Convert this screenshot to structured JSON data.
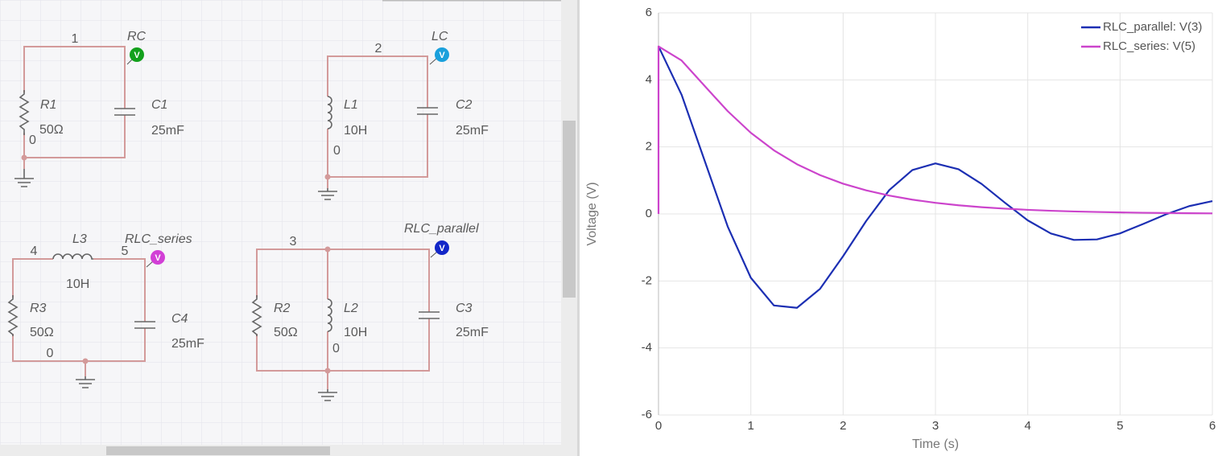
{
  "schematic": {
    "circuits": [
      {
        "probe": "RC",
        "probe_label": "V",
        "nodes": [
          "1",
          "0"
        ],
        "components": [
          {
            "ref": "R1",
            "value": "50Ω"
          },
          {
            "ref": "C1",
            "value": "25mF"
          }
        ]
      },
      {
        "probe": "LC",
        "probe_label": "V",
        "nodes": [
          "2",
          "0"
        ],
        "components": [
          {
            "ref": "L1",
            "value": "10H"
          },
          {
            "ref": "C2",
            "value": "25mF"
          }
        ]
      },
      {
        "probe": "RLC_series",
        "probe_label": "V",
        "nodes": [
          "4",
          "5",
          "0"
        ],
        "components": [
          {
            "ref": "L3",
            "value": "10H"
          },
          {
            "ref": "R3",
            "value": "50Ω"
          },
          {
            "ref": "C4",
            "value": "25mF"
          }
        ]
      },
      {
        "probe": "RLC_parallel",
        "probe_label": "V",
        "nodes": [
          "3",
          "0"
        ],
        "components": [
          {
            "ref": "R2",
            "value": "50Ω"
          },
          {
            "ref": "L2",
            "value": "10H"
          },
          {
            "ref": "C3",
            "value": "25mF"
          }
        ]
      }
    ]
  },
  "chart_data": {
    "type": "line",
    "xlabel": "Time (s)",
    "ylabel": "Voltage (V)",
    "xlim": [
      0,
      6
    ],
    "ylim": [
      -6,
      6
    ],
    "xticks": [
      0,
      1,
      2,
      3,
      4,
      5,
      6
    ],
    "yticks": [
      -6,
      -4,
      -2,
      0,
      2,
      4,
      6
    ],
    "grid": true,
    "legend": "upper right",
    "series": [
      {
        "name": "RLC_parallel: V(3)",
        "color": "#1c2fb3",
        "x": [
          0,
          0.25,
          0.5,
          0.75,
          1,
          1.25,
          1.5,
          1.75,
          2,
          2.25,
          2.5,
          2.75,
          3,
          3.25,
          3.5,
          3.75,
          4,
          4.25,
          4.5,
          4.75,
          5,
          5.25,
          5.5,
          5.75,
          6
        ],
        "values": [
          5,
          3.557,
          1.587,
          -0.379,
          -1.905,
          -2.732,
          -2.802,
          -2.236,
          -1.26,
          -0.21,
          0.712,
          1.31,
          1.508,
          1.333,
          0.896,
          0.34,
          -0.192,
          -0.584,
          -0.776,
          -0.76,
          -0.58,
          -0.301,
          -0.009,
          0.234,
          0.382
        ]
      },
      {
        "name": "RLC_series: V(5)",
        "color": "#cc44cc",
        "x": [
          0,
          0,
          0.25,
          0.5,
          0.75,
          1,
          1.25,
          1.5,
          1.75,
          2,
          2.25,
          2.5,
          2.75,
          3,
          3.25,
          3.5,
          3.75,
          4,
          4.25,
          4.5,
          4.75,
          5,
          5.25,
          5.5,
          5.75,
          6
        ],
        "values": [
          0,
          5,
          4.579,
          3.818,
          3.066,
          2.421,
          1.899,
          1.483,
          1.158,
          0.902,
          0.703,
          0.547,
          0.426,
          0.332,
          0.258,
          0.201,
          0.157,
          0.122,
          0.095,
          0.074,
          0.058,
          0.045,
          0.035,
          0.027,
          0.021,
          0.017
        ]
      }
    ]
  }
}
